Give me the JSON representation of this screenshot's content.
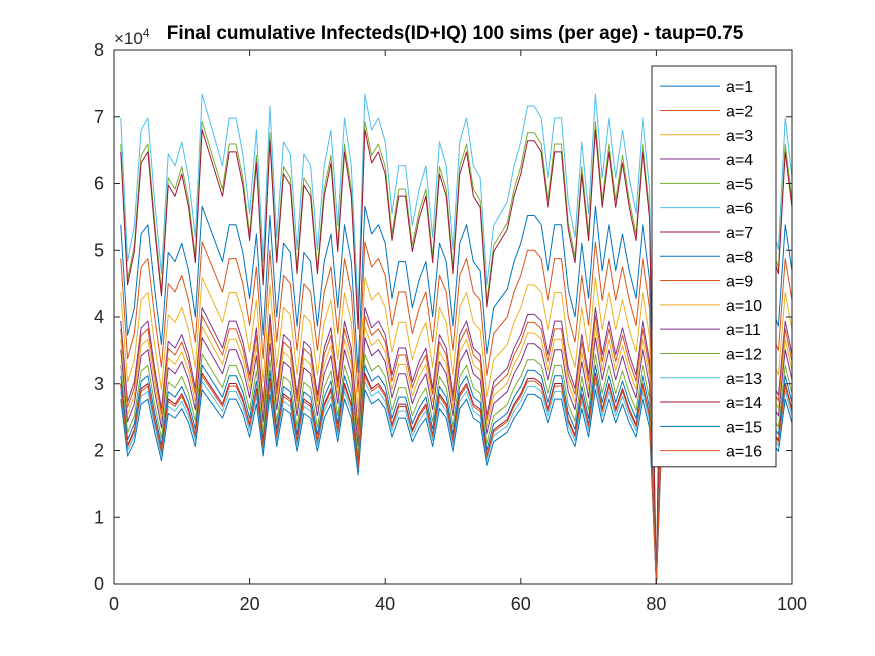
{
  "chart_data": {
    "type": "line",
    "title": "Final cumulative Infecteds(ID+IQ) 100 sims (per age) - taup=0.75",
    "y_exponent_label": "×10",
    "y_exponent_power": "4",
    "xlim": [
      0,
      100
    ],
    "ylim": [
      0,
      8
    ],
    "x_ticks": [
      "0",
      "20",
      "40",
      "60",
      "80",
      "100"
    ],
    "y_ticks": [
      "0",
      "1",
      "2",
      "3",
      "4",
      "5",
      "6",
      "7",
      "8"
    ],
    "grid": false,
    "legend_position": "top-right",
    "base_profile": [
      1.95,
      1.35,
      1.5,
      1.9,
      1.95,
      1.6,
      1.3,
      1.8,
      1.75,
      1.85,
      1.7,
      1.45,
      2.05,
      1.95,
      1.85,
      1.75,
      1.95,
      1.95,
      1.8,
      1.55,
      1.9,
      1.35,
      2.0,
      1.45,
      1.85,
      1.8,
      1.4,
      1.8,
      1.75,
      1.4,
      1.75,
      1.9,
      1.5,
      1.95,
      1.75,
      1.15,
      2.05,
      1.9,
      1.95,
      1.85,
      1.55,
      1.75,
      1.75,
      1.5,
      1.65,
      1.75,
      1.45,
      1.85,
      1.75,
      1.4,
      1.85,
      1.95,
      1.75,
      1.7,
      1.25,
      1.5,
      1.55,
      1.6,
      1.75,
      1.85,
      2.0,
      2.0,
      1.95,
      1.7,
      1.95,
      1.95,
      1.6,
      1.45,
      1.85,
      1.55,
      2.05,
      1.7,
      1.95,
      1.7,
      1.9,
      1.7,
      1.55,
      1.95,
      1.65,
      0.0,
      1.9,
      1.75,
      1.75,
      1.95,
      1.95,
      1.6,
      1.8,
      1.95,
      1.75,
      1.6,
      2.0,
      1.8,
      1.5,
      1.95,
      1.85,
      1.65,
      1.5,
      1.4,
      1.95,
      1.7
    ],
    "series": [
      {
        "name": "a=1",
        "color": "#0072BD",
        "scale": 2.76
      },
      {
        "name": "a=2",
        "color": "#D95319",
        "scale": 2.5
      },
      {
        "name": "a=3",
        "color": "#EDB120",
        "scale": 2.24
      },
      {
        "name": "a=4",
        "color": "#7E2F8E",
        "scale": 2.02
      },
      {
        "name": "a=5",
        "color": "#77AC30",
        "scale": 3.38
      },
      {
        "name": "a=6",
        "color": "#4DBEEE",
        "scale": 3.58
      },
      {
        "name": "a=7",
        "color": "#A2142F",
        "scale": 3.32
      },
      {
        "name": "a=8",
        "color": "#0072BD",
        "scale": 1.6
      },
      {
        "name": "a=9",
        "color": "#D95319",
        "scale": 1.96
      },
      {
        "name": "a=10",
        "color": "#EDB120",
        "scale": 1.88
      },
      {
        "name": "a=11",
        "color": "#7E2F8E",
        "scale": 1.8
      },
      {
        "name": "a=12",
        "color": "#77AC30",
        "scale": 1.68
      },
      {
        "name": "a=13",
        "color": "#4DBEEE",
        "scale": 1.48
      },
      {
        "name": "a=14",
        "color": "#A2142F",
        "scale": 1.54
      },
      {
        "name": "a=15",
        "color": "#0072BD",
        "scale": 1.42
      },
      {
        "name": "a=16",
        "color": "#D95319",
        "scale": 1.52
      }
    ]
  }
}
